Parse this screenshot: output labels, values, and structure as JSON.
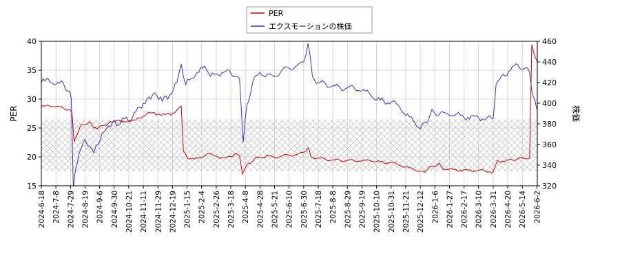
{
  "chart_data": {
    "type": "line",
    "title": "",
    "ylabel_left": "PER",
    "ylabel_right": "株価",
    "ylim_left": [
      15,
      40
    ],
    "ylim_right": [
      320,
      460
    ],
    "yticks_left": [
      "15",
      "20",
      "25",
      "30",
      "35",
      "40"
    ],
    "yticks_right": [
      "320",
      "340",
      "360",
      "380",
      "400",
      "420",
      "440",
      "460"
    ],
    "x_tick_labels": [
      "2024-6-18",
      "2024-7-8",
      "2024-7-29",
      "2024-8-19",
      "2024-9-6",
      "2024-9-30",
      "2024-10-21",
      "2024-11-11",
      "2024-11-29",
      "2024-12-19",
      "2025-1-15",
      "2025-2-4",
      "2025-2-26",
      "2025-3-18",
      "2025-4-8",
      "2025-4-28",
      "2025-5-21",
      "2025-6-10",
      "2025-6-30",
      "2025-7-18",
      "2025-8-8",
      "2025-8-29",
      "2025-9-19",
      "2025-10-10",
      "2025-10-31",
      "2025-11-21",
      "2025-12-12",
      "2026-1-6",
      "2026-1-27",
      "2026-2-17",
      "2026-3-10",
      "2026-3-31",
      "2026-4-20",
      "2026-5-14",
      "2026-6-2"
    ],
    "grid": true,
    "legend_position": "top-center",
    "hatch_band_left": [
      17.5,
      26.5
    ],
    "colors": {
      "per": "#cc0000",
      "price": "#3333cc"
    },
    "series": [
      {
        "name": "PER",
        "axis": "left",
        "points": [
          [
            0,
            28.6
          ],
          [
            0.5,
            28.9
          ],
          [
            1,
            28.7
          ],
          [
            1.5,
            28.5
          ],
          [
            1.9,
            28.2
          ],
          [
            2.1,
            27.7
          ],
          [
            2.25,
            22.6
          ],
          [
            2.4,
            23.5
          ],
          [
            2.7,
            25.5
          ],
          [
            3,
            25.6
          ],
          [
            3.3,
            26.1
          ],
          [
            3.6,
            25.0
          ],
          [
            3.8,
            24.8
          ],
          [
            4,
            25.3
          ],
          [
            4.3,
            25.5
          ],
          [
            4.6,
            25.8
          ],
          [
            5,
            26.3
          ],
          [
            5.5,
            26.0
          ],
          [
            6,
            26.1
          ],
          [
            6.5,
            26.4
          ],
          [
            7,
            27.1
          ],
          [
            7.5,
            27.6
          ],
          [
            8,
            27.4
          ],
          [
            8.5,
            27.3
          ],
          [
            9,
            27.5
          ],
          [
            9.3,
            28.1
          ],
          [
            9.6,
            28.8
          ],
          [
            9.75,
            21.0
          ],
          [
            10,
            19.8
          ],
          [
            10.5,
            19.6
          ],
          [
            11,
            19.9
          ],
          [
            11.5,
            20.5
          ],
          [
            12,
            20.1
          ],
          [
            12.5,
            19.8
          ],
          [
            13,
            20.0
          ],
          [
            13.3,
            20.6
          ],
          [
            13.6,
            20.2
          ],
          [
            13.8,
            17.0
          ],
          [
            14.2,
            18.9
          ],
          [
            14.6,
            19.6
          ],
          [
            15,
            19.9
          ],
          [
            15.5,
            20.3
          ],
          [
            16,
            19.9
          ],
          [
            16.5,
            20.2
          ],
          [
            17,
            20.3
          ],
          [
            17.5,
            20.4
          ],
          [
            18,
            20.8
          ],
          [
            18.3,
            21.6
          ],
          [
            18.5,
            20.0
          ],
          [
            19,
            19.8
          ],
          [
            19.5,
            19.6
          ],
          [
            20,
            19.5
          ],
          [
            20.5,
            19.4
          ],
          [
            21,
            19.4
          ],
          [
            21.5,
            19.3
          ],
          [
            22,
            19.3
          ],
          [
            22.5,
            19.4
          ],
          [
            23,
            19.2
          ],
          [
            23.5,
            19.0
          ],
          [
            24,
            19.1
          ],
          [
            24.5,
            18.6
          ],
          [
            25,
            18.2
          ],
          [
            25.5,
            17.9
          ],
          [
            26,
            17.5
          ],
          [
            26.3,
            17.3
          ],
          [
            26.7,
            18.4
          ],
          [
            27,
            18.3
          ],
          [
            27.3,
            18.9
          ],
          [
            27.6,
            17.8
          ],
          [
            28,
            17.9
          ],
          [
            28.5,
            17.7
          ],
          [
            29,
            17.8
          ],
          [
            29.5,
            17.6
          ],
          [
            30,
            17.7
          ],
          [
            30.5,
            17.5
          ],
          [
            31,
            17.4
          ],
          [
            31.3,
            19.4
          ],
          [
            31.8,
            19.2
          ],
          [
            32.3,
            19.5
          ],
          [
            32.8,
            19.8
          ],
          [
            33.2,
            19.7
          ],
          [
            33.5,
            19.8
          ],
          [
            33.65,
            39.4
          ],
          [
            33.9,
            37.2
          ],
          [
            34.2,
            35.4
          ],
          [
            34.5,
            36.2
          ],
          [
            34.8,
            35.8
          ]
        ]
      },
      {
        "name": "エクスモーションの株価",
        "axis": "right",
        "points": [
          [
            0,
            420
          ],
          [
            0.5,
            423
          ],
          [
            1,
            418
          ],
          [
            1.5,
            420
          ],
          [
            1.9,
            412
          ],
          [
            2.05,
            405
          ],
          [
            2.2,
            316
          ],
          [
            2.35,
            336
          ],
          [
            2.6,
            352
          ],
          [
            3,
            365
          ],
          [
            3.3,
            358
          ],
          [
            3.6,
            352
          ],
          [
            3.9,
            360
          ],
          [
            4.3,
            372
          ],
          [
            4.6,
            378
          ],
          [
            4.9,
            382
          ],
          [
            5.3,
            379
          ],
          [
            5.7,
            385
          ],
          [
            6.1,
            383
          ],
          [
            6.5,
            392
          ],
          [
            7,
            400
          ],
          [
            7.5,
            404
          ],
          [
            7.8,
            410
          ],
          [
            8.3,
            402
          ],
          [
            8.8,
            408
          ],
          [
            9.3,
            420
          ],
          [
            9.6,
            438
          ],
          [
            9.9,
            418
          ],
          [
            10.3,
            424
          ],
          [
            10.8,
            430
          ],
          [
            11.2,
            436
          ],
          [
            11.6,
            426
          ],
          [
            12,
            428
          ],
          [
            12.5,
            430
          ],
          [
            12.9,
            432
          ],
          [
            13.3,
            426
          ],
          [
            13.6,
            424
          ],
          [
            13.85,
            362
          ],
          [
            14.1,
            398
          ],
          [
            14.5,
            420
          ],
          [
            15,
            430
          ],
          [
            15.5,
            428
          ],
          [
            16,
            426
          ],
          [
            16.5,
            432
          ],
          [
            17,
            434
          ],
          [
            17.5,
            436
          ],
          [
            18,
            440
          ],
          [
            18.3,
            458
          ],
          [
            18.6,
            426
          ],
          [
            19,
            420
          ],
          [
            19.5,
            419
          ],
          [
            20,
            417
          ],
          [
            20.5,
            415
          ],
          [
            21,
            415
          ],
          [
            21.5,
            414
          ],
          [
            22,
            412
          ],
          [
            22.5,
            410
          ],
          [
            23,
            403
          ],
          [
            23.5,
            402
          ],
          [
            24,
            401
          ],
          [
            24.5,
            398
          ],
          [
            25,
            388
          ],
          [
            25.5,
            384
          ],
          [
            26,
            375
          ],
          [
            26.5,
            382
          ],
          [
            26.8,
            394
          ],
          [
            27.1,
            388
          ],
          [
            27.5,
            392
          ],
          [
            28,
            388
          ],
          [
            28.5,
            390
          ],
          [
            29,
            386
          ],
          [
            29.5,
            388
          ],
          [
            30,
            386
          ],
          [
            30.5,
            385
          ],
          [
            31,
            385
          ],
          [
            31.2,
            418
          ],
          [
            31.7,
            428
          ],
          [
            32.2,
            432
          ],
          [
            32.7,
            437
          ],
          [
            33.2,
            434
          ],
          [
            33.5,
            430
          ],
          [
            33.7,
            408
          ],
          [
            34,
            394
          ],
          [
            34.3,
            386
          ],
          [
            34.6,
            392
          ],
          [
            34.8,
            398
          ]
        ]
      }
    ]
  }
}
